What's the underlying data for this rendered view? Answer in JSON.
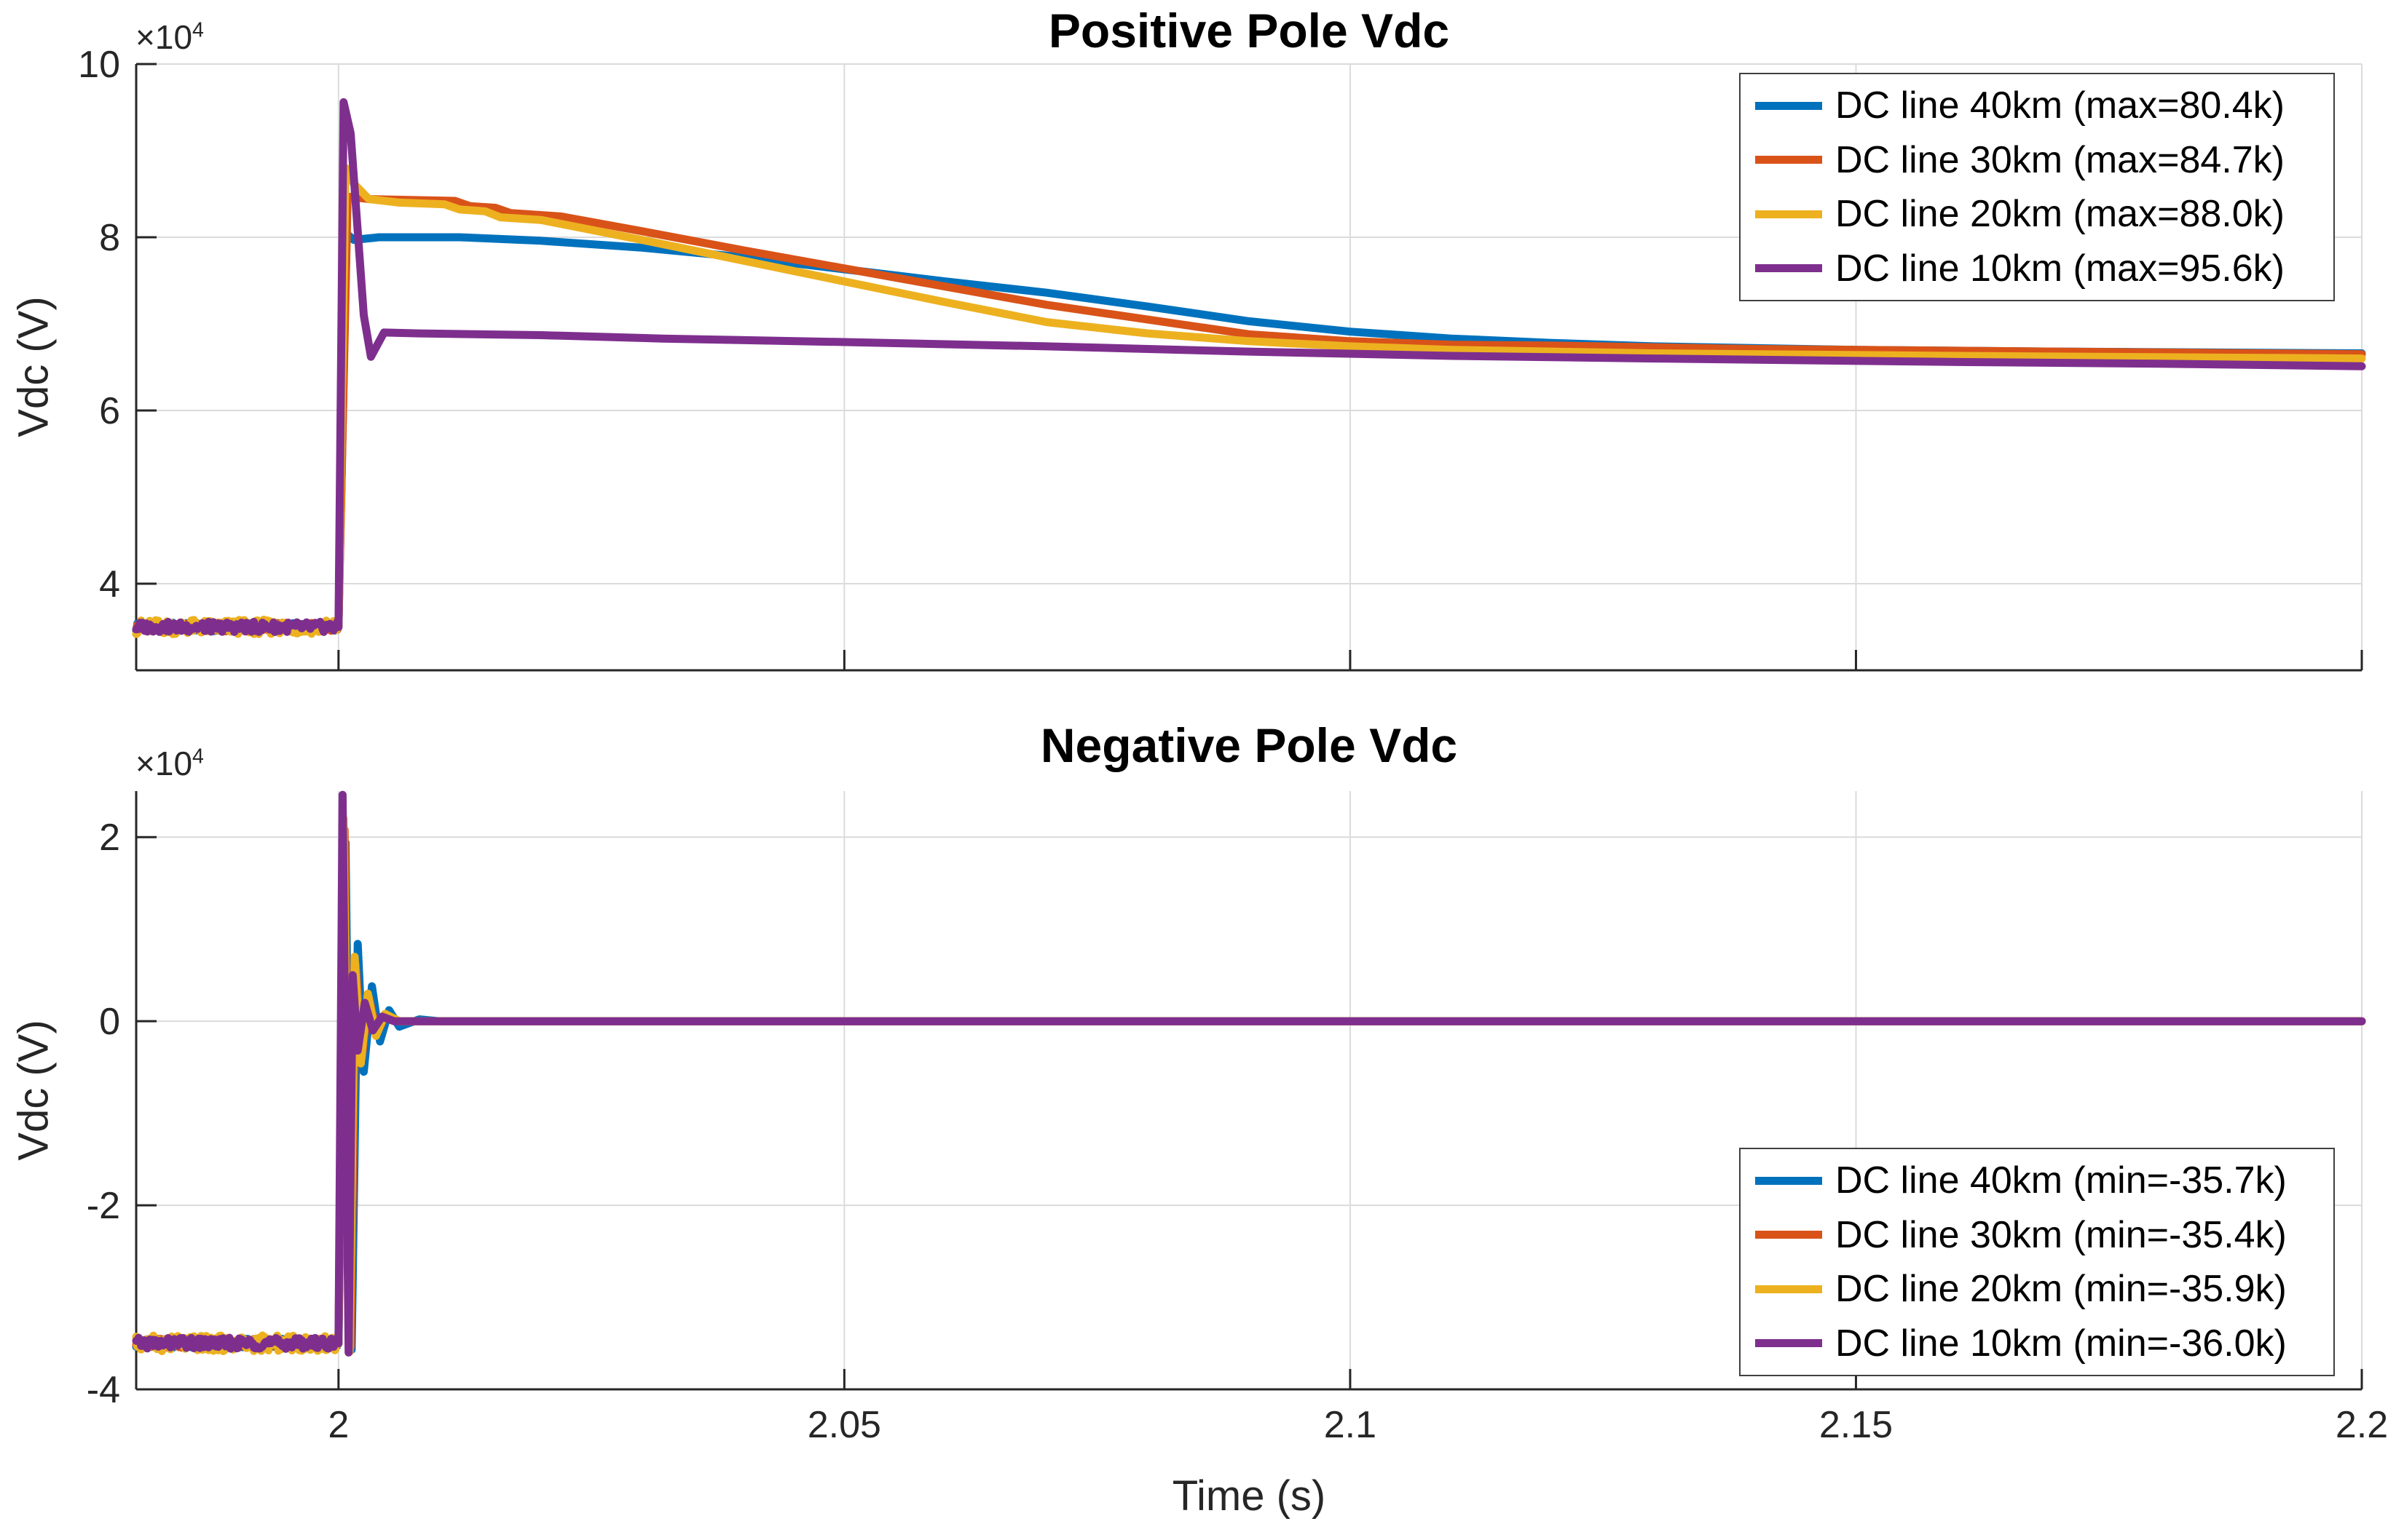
{
  "figure": {
    "background": "#ffffff",
    "text_color": "#262626",
    "grid_color": "#dbdbdb",
    "axis_color": "#262626"
  },
  "chart_data": [
    {
      "type": "line",
      "title": "Positive Pole Vdc",
      "ylabel": "Vdc (V)",
      "xlabel": "",
      "y_scale_base": "×10",
      "y_scale_exp": "4",
      "y_unit_note": "values in 10^4 V",
      "xlim": [
        1.98,
        2.2
      ],
      "ylim": [
        3,
        10
      ],
      "grid": true,
      "legend_position": "top-right",
      "xticks": [
        {
          "value": 2,
          "label": ""
        },
        {
          "value": 2.05,
          "label": ""
        },
        {
          "value": 2.1,
          "label": ""
        },
        {
          "value": 2.15,
          "label": ""
        },
        {
          "value": 2.2,
          "label": ""
        }
      ],
      "yticks": [
        {
          "value": 4,
          "label": "4"
        },
        {
          "value": 6,
          "label": "6"
        },
        {
          "value": 8,
          "label": "8"
        },
        {
          "value": 10,
          "label": "10"
        }
      ],
      "pre_fault": {
        "t_start": 1.98,
        "t_end": 2.0,
        "level": 3.5
      },
      "series": [
        {
          "name": "DC line 40km (max=80.4k)",
          "color": "#0072BD",
          "max_label": "80.4k",
          "noise_amplitude": 0.05,
          "points": [
            [
              2.0,
              3.5
            ],
            [
              2.0008,
              8.04
            ],
            [
              2.0015,
              7.97
            ],
            [
              2.004,
              8.0
            ],
            [
              2.012,
              8.0
            ],
            [
              2.02,
              7.96
            ],
            [
              2.03,
              7.88
            ],
            [
              2.04,
              7.77
            ],
            [
              2.05,
              7.63
            ],
            [
              2.06,
              7.49
            ],
            [
              2.07,
              7.36
            ],
            [
              2.08,
              7.2
            ],
            [
              2.09,
              7.03
            ],
            [
              2.1,
              6.91
            ],
            [
              2.11,
              6.83
            ],
            [
              2.12,
              6.78
            ],
            [
              2.13,
              6.74
            ],
            [
              2.15,
              6.7
            ],
            [
              2.17,
              6.68
            ],
            [
              2.2,
              6.66
            ]
          ]
        },
        {
          "name": "DC line 30km (max=84.7k)",
          "color": "#D95319",
          "max_label": "84.7k",
          "noise_amplitude": 0.05,
          "points": [
            [
              2.0,
              3.5
            ],
            [
              2.0009,
              8.47
            ],
            [
              2.003,
              8.44
            ],
            [
              2.0115,
              8.42
            ],
            [
              2.013,
              8.36
            ],
            [
              2.0155,
              8.34
            ],
            [
              2.017,
              8.28
            ],
            [
              2.022,
              8.24
            ],
            [
              2.03,
              8.07
            ],
            [
              2.04,
              7.85
            ],
            [
              2.05,
              7.64
            ],
            [
              2.06,
              7.43
            ],
            [
              2.07,
              7.22
            ],
            [
              2.08,
              7.05
            ],
            [
              2.09,
              6.88
            ],
            [
              2.1,
              6.8
            ],
            [
              2.11,
              6.76
            ],
            [
              2.12,
              6.75
            ],
            [
              2.14,
              6.71
            ],
            [
              2.16,
              6.69
            ],
            [
              2.18,
              6.67
            ],
            [
              2.2,
              6.65
            ]
          ]
        },
        {
          "name": "DC line 20km (max=88.0k)",
          "color": "#EDB120",
          "max_label": "88.0k",
          "noise_amplitude": 0.085,
          "points": [
            [
              2.0,
              3.5
            ],
            [
              2.0007,
              8.8
            ],
            [
              2.0015,
              8.62
            ],
            [
              2.003,
              8.44
            ],
            [
              2.006,
              8.4
            ],
            [
              2.0105,
              8.38
            ],
            [
              2.012,
              8.32
            ],
            [
              2.0145,
              8.3
            ],
            [
              2.016,
              8.23
            ],
            [
              2.02,
              8.2
            ],
            [
              2.03,
              7.97
            ],
            [
              2.04,
              7.73
            ],
            [
              2.05,
              7.49
            ],
            [
              2.06,
              7.25
            ],
            [
              2.07,
              7.02
            ],
            [
              2.08,
              6.89
            ],
            [
              2.09,
              6.8
            ],
            [
              2.1,
              6.74
            ],
            [
              2.11,
              6.7
            ],
            [
              2.13,
              6.66
            ],
            [
              2.16,
              6.63
            ],
            [
              2.2,
              6.6
            ]
          ]
        },
        {
          "name": "DC line 10km (max=95.6k)",
          "color": "#7E2F8E",
          "max_label": "95.6k",
          "noise_amplitude": 0.06,
          "points": [
            [
              2.0,
              3.5
            ],
            [
              2.0005,
              9.56
            ],
            [
              2.0012,
              9.2
            ],
            [
              2.0025,
              7.1
            ],
            [
              2.0032,
              6.62
            ],
            [
              2.0045,
              6.9
            ],
            [
              2.008,
              6.89
            ],
            [
              2.02,
              6.87
            ],
            [
              2.032,
              6.83
            ],
            [
              2.05,
              6.79
            ],
            [
              2.07,
              6.74
            ],
            [
              2.09,
              6.68
            ],
            [
              2.11,
              6.63
            ],
            [
              2.13,
              6.6
            ],
            [
              2.16,
              6.56
            ],
            [
              2.18,
              6.54
            ],
            [
              2.2,
              6.51
            ]
          ]
        }
      ]
    },
    {
      "type": "line",
      "title": "Negative Pole Vdc",
      "ylabel": "Vdc (V)",
      "xlabel": "Time (s)",
      "y_scale_base": "×10",
      "y_scale_exp": "4",
      "y_unit_note": "values in 10^4 V",
      "xlim": [
        1.98,
        2.2
      ],
      "ylim": [
        -4,
        2.5
      ],
      "grid": true,
      "legend_position": "bottom-right",
      "xticks": [
        {
          "value": 2,
          "label": "2"
        },
        {
          "value": 2.05,
          "label": "2.05"
        },
        {
          "value": 2.1,
          "label": "2.1"
        },
        {
          "value": 2.15,
          "label": "2.15"
        },
        {
          "value": 2.2,
          "label": "2.2"
        }
      ],
      "yticks": [
        {
          "value": -4,
          "label": "-4"
        },
        {
          "value": -2,
          "label": "-2"
        },
        {
          "value": 0,
          "label": "0"
        },
        {
          "value": 2,
          "label": "2"
        }
      ],
      "pre_fault": {
        "t_start": 1.98,
        "t_end": 2.0,
        "level": -3.5
      },
      "series": [
        {
          "name": "DC line 40km (min=-35.7k)",
          "color": "#0072BD",
          "min_label": "-35.7k",
          "noise_amplitude": 0.05,
          "points": [
            [
              2.0,
              -3.5
            ],
            [
              2.0007,
              1.94
            ],
            [
              2.0013,
              -3.57
            ],
            [
              2.0019,
              0.84
            ],
            [
              2.0025,
              -0.55
            ],
            [
              2.0033,
              0.38
            ],
            [
              2.0041,
              -0.22
            ],
            [
              2.005,
              0.12
            ],
            [
              2.006,
              -0.06
            ],
            [
              2.008,
              0.02
            ],
            [
              2.01,
              0
            ],
            [
              2.2,
              0
            ]
          ]
        },
        {
          "name": "DC line 30km (min=-35.4k)",
          "color": "#D95319",
          "min_label": "-35.4k",
          "noise_amplitude": 0.05,
          "points": [
            [
              2.0,
              -3.5
            ],
            [
              2.0006,
              2.08
            ],
            [
              2.0012,
              -3.54
            ],
            [
              2.0017,
              0.62
            ],
            [
              2.0023,
              -0.4
            ],
            [
              2.003,
              0.26
            ],
            [
              2.0038,
              -0.13
            ],
            [
              2.0047,
              0.07
            ],
            [
              2.006,
              0
            ],
            [
              2.2,
              0
            ]
          ]
        },
        {
          "name": "DC line 20km (min=-35.9k)",
          "color": "#EDB120",
          "min_label": "-35.9k",
          "noise_amplitude": 0.085,
          "points": [
            [
              2.0,
              -3.5
            ],
            [
              2.0005,
              2.2
            ],
            [
              2.0011,
              -3.59
            ],
            [
              2.0016,
              0.7
            ],
            [
              2.0022,
              -0.46
            ],
            [
              2.0029,
              0.3
            ],
            [
              2.0037,
              -0.16
            ],
            [
              2.0046,
              0.08
            ],
            [
              2.006,
              0
            ],
            [
              2.2,
              0
            ]
          ]
        },
        {
          "name": "DC line 10km (min=-36.0k)",
          "color": "#7E2F8E",
          "min_label": "-36.0k",
          "noise_amplitude": 0.06,
          "points": [
            [
              2.0,
              -3.5
            ],
            [
              2.0004,
              2.46
            ],
            [
              2.001,
              -3.6
            ],
            [
              2.0014,
              0.5
            ],
            [
              2.0019,
              -0.32
            ],
            [
              2.0026,
              0.2
            ],
            [
              2.0034,
              -0.1
            ],
            [
              2.0043,
              0.05
            ],
            [
              2.0055,
              0
            ],
            [
              2.2,
              0
            ]
          ]
        }
      ]
    }
  ]
}
